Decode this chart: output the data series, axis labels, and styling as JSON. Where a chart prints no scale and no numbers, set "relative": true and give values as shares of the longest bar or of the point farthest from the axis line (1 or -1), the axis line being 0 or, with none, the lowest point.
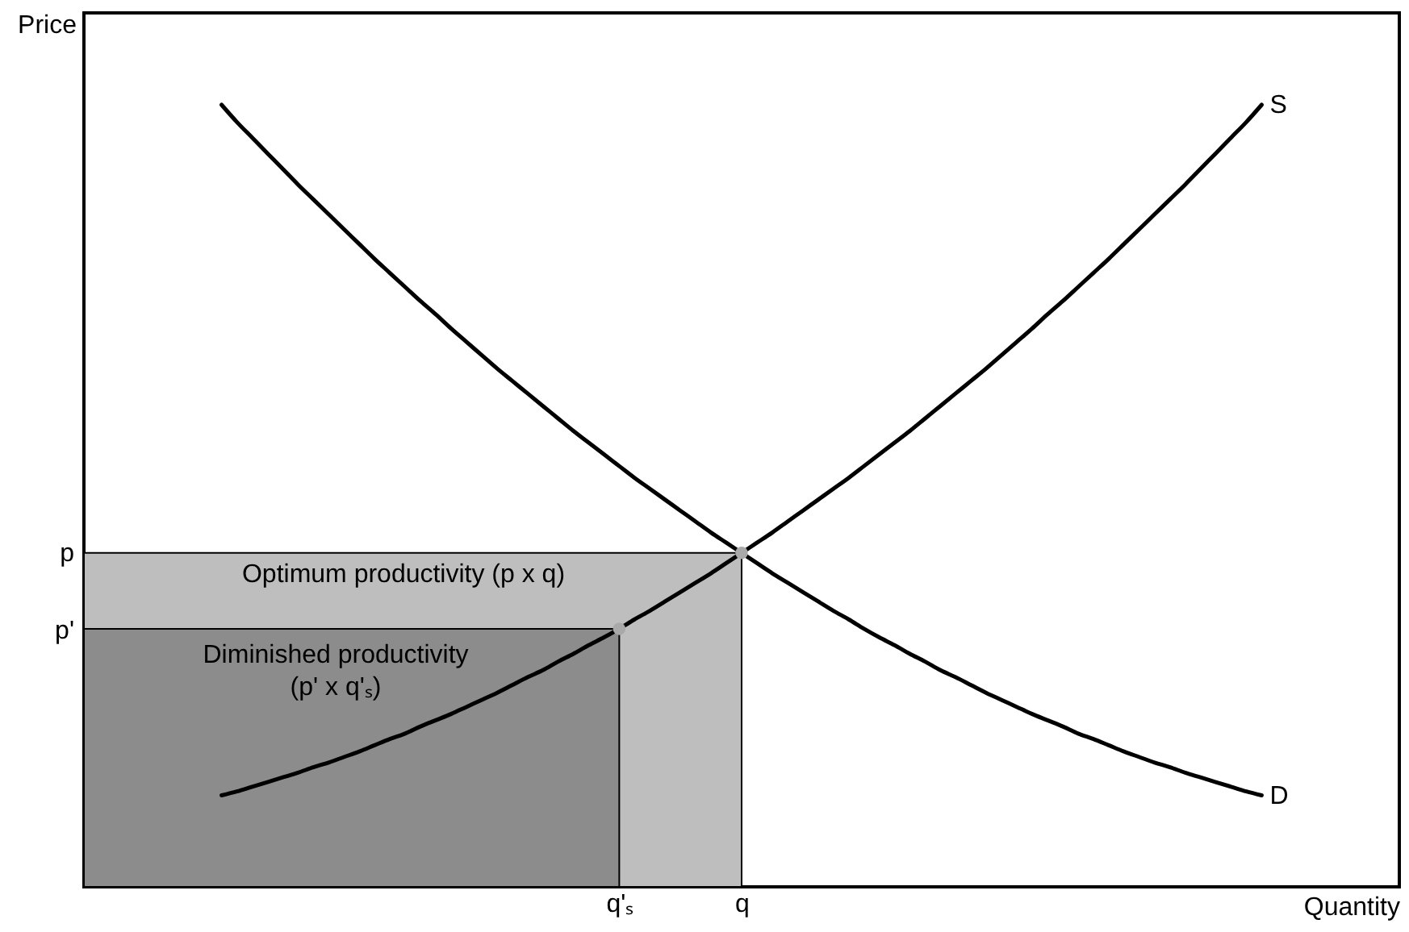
{
  "chart_data": {
    "type": "line",
    "relative": true,
    "xlabel": "Quantity",
    "ylabel": "Price",
    "categories": [
      null,
      null,
      null,
      null,
      null,
      null,
      null,
      null,
      null,
      null,
      null,
      null,
      null,
      null,
      null,
      null,
      null,
      null,
      null,
      null,
      null,
      null,
      null,
      null,
      null,
      null,
      null,
      null,
      null,
      null,
      null,
      null,
      null,
      null,
      null,
      "q'ₛ",
      null,
      null,
      null,
      null,
      null,
      null,
      null,
      "q",
      null,
      null,
      null,
      null,
      null,
      null,
      null,
      null,
      null,
      null,
      null,
      null,
      null,
      null,
      null,
      null,
      null,
      null,
      null,
      null,
      null,
      null,
      null,
      null,
      null,
      null,
      null,
      null,
      null,
      null,
      null,
      null,
      null,
      null,
      null,
      null,
      null,
      null,
      null,
      null,
      null,
      null,
      null
    ],
    "series": [
      {
        "type": "area",
        "color": "#bebebe",
        "values": [
          0.427,
          0.427,
          0.427,
          0.427,
          0.427,
          0.427,
          0.427,
          0.427,
          0.427,
          0.427,
          0.427,
          0.427,
          0.427,
          0.427,
          0.427,
          0.427,
          0.427,
          0.427,
          0.427,
          0.427,
          0.427,
          0.427,
          0.427,
          0.427,
          0.427,
          0.427,
          0.427,
          0.427,
          0.427,
          0.427,
          0.427,
          0.427,
          0.427,
          0.427,
          0.427,
          0.427,
          0.427,
          0.427,
          0.427,
          0.427,
          0.427,
          0.427,
          0.427,
          0.427,
          null,
          null,
          null,
          null,
          null,
          null,
          null,
          null,
          null,
          null,
          null,
          null,
          null,
          null,
          null,
          null,
          null,
          null,
          null,
          null,
          null,
          null,
          null,
          null,
          null,
          null,
          null,
          null,
          null,
          null,
          null,
          null,
          null,
          null,
          null,
          null,
          null,
          null,
          null,
          null,
          null,
          null,
          null
        ]
      },
      {
        "type": "area",
        "color": "#8c8c8c",
        "values": [
          0.33,
          0.33,
          0.33,
          0.33,
          0.33,
          0.33,
          0.33,
          0.33,
          0.33,
          0.33,
          0.33,
          0.33,
          0.33,
          0.33,
          0.33,
          0.33,
          0.33,
          0.33,
          0.33,
          0.33,
          0.33,
          0.33,
          0.33,
          0.33,
          0.33,
          0.33,
          0.33,
          0.33,
          0.33,
          0.33,
          0.33,
          0.33,
          0.33,
          0.33,
          0.33,
          0.33,
          null,
          null,
          null,
          null,
          null,
          null,
          null,
          null,
          null,
          null,
          null,
          null,
          null,
          null,
          null,
          null,
          null,
          null,
          null,
          null,
          null,
          null,
          null,
          null,
          null,
          null,
          null,
          null,
          null,
          null,
          null,
          null,
          null,
          null,
          null,
          null,
          null,
          null,
          null,
          null,
          null,
          null,
          null,
          null,
          null,
          null,
          null,
          null,
          null,
          null,
          null
        ]
      },
      {
        "name": "D",
        "color": "#000000",
        "values": [
          null,
          null,
          null,
          null,
          null,
          null,
          null,
          null,
          null,
          1,
          0.978,
          0.958,
          0.938,
          0.918,
          0.898,
          0.879,
          0.86,
          0.841,
          0.822,
          0.803,
          0.785,
          0.767,
          0.749,
          0.732,
          0.714,
          0.697,
          0.68,
          0.663,
          0.647,
          0.631,
          0.615,
          0.599,
          0.583,
          0.568,
          0.553,
          0.538,
          0.523,
          0.509,
          0.495,
          0.481,
          0.467,
          0.453,
          0.44,
          0.427,
          0.414,
          0.401,
          0.389,
          0.377,
          0.365,
          0.353,
          0.342,
          0.33,
          0.319,
          0.309,
          0.298,
          0.288,
          0.277,
          0.268,
          0.258,
          0.248,
          0.239,
          0.23,
          0.221,
          0.213,
          0.205,
          0.196,
          0.189,
          0.181,
          0.173,
          0.166,
          0.159,
          0.153,
          0.146,
          0.14,
          0.134,
          0.128,
          0.122,
          0.117,
          null,
          null,
          null,
          null,
          null,
          null,
          null,
          null,
          null
        ]
      },
      {
        "name": "S",
        "color": "#000000",
        "values": [
          null,
          null,
          null,
          null,
          null,
          null,
          null,
          null,
          null,
          0.117,
          0.122,
          0.128,
          0.134,
          0.14,
          0.146,
          0.153,
          0.159,
          0.166,
          0.173,
          0.181,
          0.189,
          0.196,
          0.205,
          0.213,
          0.221,
          0.23,
          0.239,
          0.248,
          0.258,
          0.268,
          0.277,
          0.288,
          0.298,
          0.309,
          0.319,
          0.33,
          0.342,
          0.353,
          0.365,
          0.377,
          0.389,
          0.401,
          0.414,
          0.427,
          0.44,
          0.453,
          0.467,
          0.481,
          0.495,
          0.509,
          0.523,
          0.538,
          0.553,
          0.568,
          0.583,
          0.599,
          0.615,
          0.631,
          0.647,
          0.663,
          0.68,
          0.697,
          0.714,
          0.732,
          0.749,
          0.767,
          0.785,
          0.803,
          0.822,
          0.841,
          0.86,
          0.879,
          0.898,
          0.918,
          0.938,
          0.958,
          0.978,
          1,
          null,
          null,
          null,
          null,
          null,
          null,
          null,
          null,
          null
        ]
      },
      {
        "type": "scatter",
        "color": "#a9a9a9",
        "marker": "circle",
        "values": [
          null,
          null,
          null,
          null,
          null,
          null,
          null,
          null,
          null,
          null,
          null,
          null,
          null,
          null,
          null,
          null,
          null,
          null,
          null,
          null,
          null,
          null,
          null,
          null,
          null,
          null,
          null,
          null,
          null,
          null,
          null,
          null,
          null,
          null,
          null,
          0.33,
          null,
          null,
          null,
          null,
          null,
          null,
          null,
          0.427,
          null,
          null,
          null,
          null,
          null,
          null,
          null,
          null,
          null,
          null,
          null,
          null,
          null,
          null,
          null,
          null,
          null,
          null,
          null,
          null,
          null,
          null,
          null,
          null,
          null,
          null,
          null,
          null,
          null,
          null,
          null,
          null,
          null,
          null,
          null,
          null,
          null,
          null,
          null,
          null,
          null,
          null,
          null
        ]
      }
    ],
    "annotations": [
      "p",
      "Optimum productivity (p x q)",
      "p'",
      "Diminished productivity\n(p' x q'ₛ)"
    ]
  }
}
